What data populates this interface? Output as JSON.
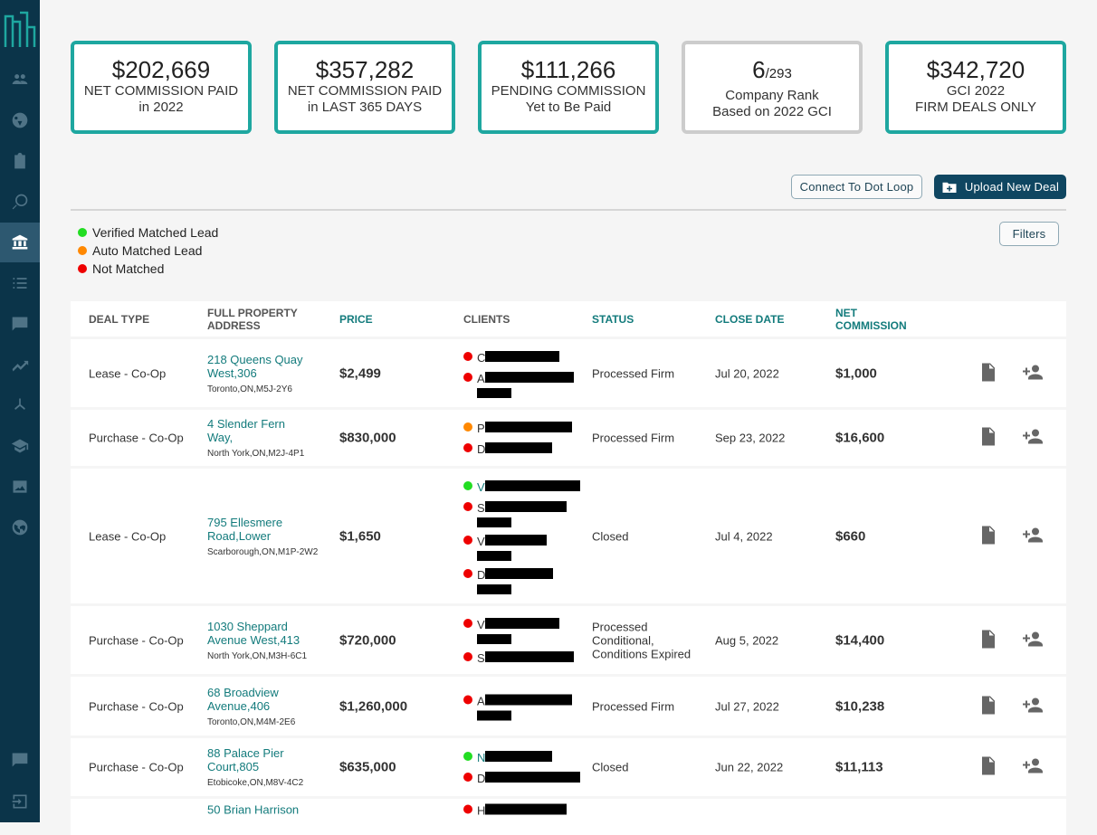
{
  "sidebar": {
    "items": [
      "users-icon",
      "dashboard-icon",
      "clipboard-icon",
      "search-dollar-icon",
      "bank-icon",
      "list-icon",
      "chat-icon",
      "trending-icon",
      "network-icon",
      "school-icon",
      "image-icon",
      "globe-icon"
    ],
    "bottom": [
      "feedback-icon",
      "logout-icon"
    ]
  },
  "cards": [
    {
      "value": "$202,669",
      "l1": "NET COMMISSION PAID",
      "l2": "in 2022"
    },
    {
      "value": "$357,282",
      "l1": "NET COMMISSION PAID",
      "l2": "in LAST 365 DAYS"
    },
    {
      "value": "$111,266",
      "l1": "PENDING COMMISSION",
      "l2": "Yet to Be Paid"
    },
    {
      "value": "6",
      "suffix": "/293",
      "l1": "Company Rank",
      "l2": "Based on 2022 GCI"
    },
    {
      "value": "$342,720",
      "l1": "GCI 2022",
      "l2": "FIRM DEALS ONLY"
    }
  ],
  "toolbar": {
    "connect": "Connect To Dot Loop",
    "upload": "Upload New Deal",
    "filters": "Filters"
  },
  "legend": [
    {
      "label": "Verified Matched Lead",
      "color": "#22dd22"
    },
    {
      "label": "Auto Matched Lead",
      "color": "#ff8800"
    },
    {
      "label": "Not Matched",
      "color": "#ee0000"
    }
  ],
  "headers": [
    "DEAL TYPE",
    "FULL PROPERTY ADDRESS",
    "PRICE",
    "CLIENTS",
    "STATUS",
    "CLOSE DATE",
    "NET COMMISSION"
  ],
  "rows": [
    {
      "type": "Lease - Co-Op",
      "addr": "218 Queens Quay West,306",
      "city": "Toronto,ON,M5J-2Y6",
      "price": "$2,499",
      "clients": [
        {
          "i": "C",
          "s": "none"
        },
        {
          "i": "A",
          "s": "none"
        }
      ],
      "status": "Processed Firm",
      "date": "Jul 20, 2022",
      "net": "$1,000"
    },
    {
      "type": "Purchase - Co-Op",
      "addr": "4 Slender Fern Way,",
      "city": "North York,ON,M2J-4P1",
      "price": "$830,000",
      "clients": [
        {
          "i": "P",
          "s": "auto"
        },
        {
          "i": "D",
          "s": "none"
        }
      ],
      "status": "Processed Firm",
      "date": "Sep 23, 2022",
      "net": "$16,600"
    },
    {
      "type": "Lease - Co-Op",
      "addr": "795 Ellesmere Road,Lower",
      "city": "Scarborough,ON,M1P-2W2",
      "price": "$1,650",
      "clients": [
        {
          "i": "V",
          "s": "verified"
        },
        {
          "i": "S",
          "s": "none"
        },
        {
          "i": "V",
          "s": "none"
        },
        {
          "i": "D",
          "s": "none"
        }
      ],
      "status": "Closed",
      "date": "Jul 4, 2022",
      "net": "$660"
    },
    {
      "type": "Purchase - Co-Op",
      "addr": "1030 Sheppard Avenue West,413",
      "city": "North York,ON,M3H-6C1",
      "price": "$720,000",
      "clients": [
        {
          "i": "V",
          "s": "none"
        },
        {
          "i": "S",
          "s": "none"
        }
      ],
      "status": "Processed Conditional, Conditions Expired",
      "date": "Aug 5, 2022",
      "net": "$14,400"
    },
    {
      "type": "Purchase - Co-Op",
      "addr": "68 Broadview Avenue,406",
      "city": "Toronto,ON,M4M-2E6",
      "price": "$1,260,000",
      "clients": [
        {
          "i": "A",
          "s": "none"
        }
      ],
      "status": "Processed Firm",
      "date": "Jul 27, 2022",
      "net": "$10,238"
    },
    {
      "type": "Purchase - Co-Op",
      "addr": "88 Palace Pier Court,805",
      "city": "Etobicoke,ON,M8V-4C2",
      "price": "$635,000",
      "clients": [
        {
          "i": "N",
          "s": "verified"
        },
        {
          "i": "D",
          "s": "none"
        }
      ],
      "status": "Closed",
      "date": "Jun 22, 2022",
      "net": "$11,113"
    },
    {
      "type": "",
      "addr": "50 Brian Harrison",
      "city": "",
      "price": "",
      "clients": [
        {
          "i": "H",
          "s": "none"
        }
      ],
      "status": "",
      "date": "",
      "net": ""
    }
  ]
}
